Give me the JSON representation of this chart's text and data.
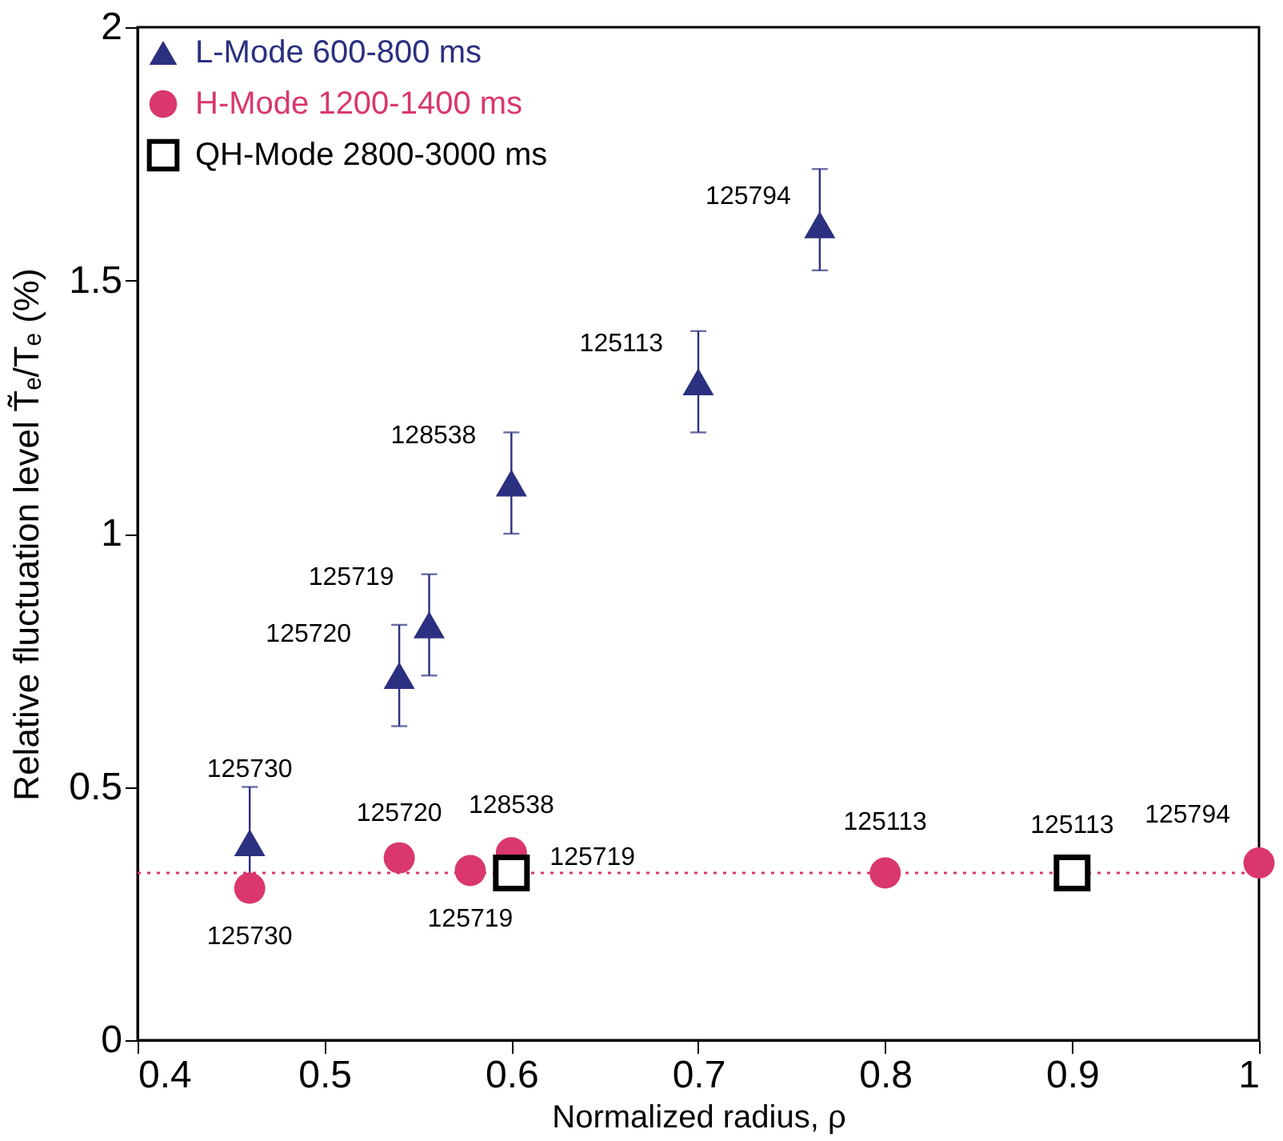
{
  "chart_data": {
    "type": "scatter",
    "xlabel": "Normalized radius, ρ",
    "ylabel": "Relative fluctuation level  T̃ₑ/Tₑ (%)",
    "xlim": [
      0.4,
      1.0
    ],
    "xticks": [
      0.4,
      0.5,
      0.6,
      0.7,
      0.8,
      0.9,
      {
        "value": 1.0,
        "label": "1"
      }
    ],
    "ylim": [
      0,
      2
    ],
    "yticks": [
      0,
      0.5,
      {
        "value": 1,
        "label": "1"
      },
      1.5,
      {
        "value": 2,
        "label": "2"
      }
    ],
    "grid": false,
    "legend": "top left",
    "series": [
      {
        "name": "L-Mode    600-800 ms",
        "color": "#2b3080",
        "marker": "triangle",
        "x": [
          0.46,
          0.54,
          0.556,
          0.6,
          0.7,
          0.765
        ],
        "values": [
          0.39,
          0.72,
          0.82,
          1.1,
          1.3,
          1.61
        ],
        "errors": [
          0.11,
          0.1,
          0.1,
          0.1,
          0.1,
          [
            1.52,
            1.72
          ]
        ]
      },
      {
        "name": "H-Mode   1200-1400 ms",
        "color": "#d9376e",
        "marker": "circle",
        "x": [
          0.46,
          0.54,
          0.578,
          0.6,
          0.8,
          1.0
        ],
        "values": [
          0.3,
          0.36,
          0.335,
          0.37,
          0.33,
          0.35
        ]
      },
      {
        "name": "QH-Mode  2800-3000  ms",
        "color": "#000000",
        "marker": "square",
        "x": [
          0.6,
          0.9
        ],
        "values": [
          0.33,
          0.33
        ]
      }
    ],
    "ref_lines": [
      {
        "axis": "y",
        "value": 0.33,
        "color": "#d9376e",
        "line_style": "dotted"
      }
    ],
    "annotations": [
      {
        "text": "125730",
        "x": 0.46,
        "y": 0.39
      },
      {
        "text": "125720",
        "x": 0.54,
        "y": 0.72
      },
      {
        "text": "125719",
        "x": 0.556,
        "y": 0.82
      },
      {
        "text": "128538",
        "x": 0.6,
        "y": 1.1
      },
      {
        "text": "125113",
        "x": 0.7,
        "y": 1.3
      },
      {
        "text": "125794",
        "x": 0.765,
        "y": 1.61
      },
      {
        "text": "125730",
        "x": 0.46,
        "y": 0.3
      },
      {
        "text": "125720",
        "x": 0.54,
        "y": 0.36
      },
      {
        "text": "125719",
        "x": 0.578,
        "y": 0.335
      },
      {
        "text": "128538",
        "x": 0.6,
        "y": 0.37
      },
      {
        "text": "125113",
        "x": 0.8,
        "y": 0.33
      },
      {
        "text": "125794",
        "x": 1.0,
        "y": 0.35
      },
      {
        "text": "125719",
        "x": 0.6,
        "y": 0.33
      },
      {
        "text": "125113",
        "x": 0.9,
        "y": 0.33
      }
    ]
  }
}
